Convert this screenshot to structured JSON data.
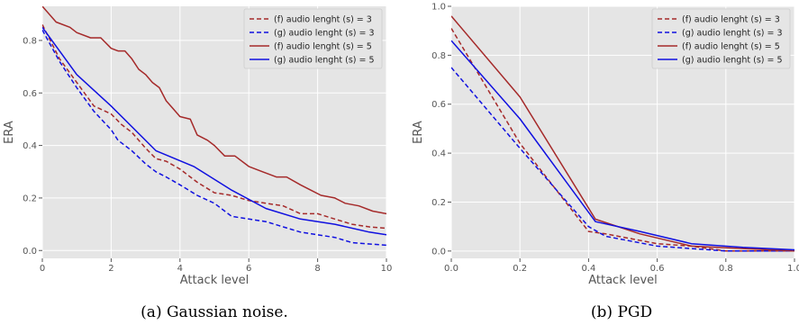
{
  "figure": {
    "captions": [
      "(a) Gaussian noise.",
      "(b) PGD"
    ]
  },
  "colors": {
    "dark_red": "#a52a2a",
    "blue": "#1010e0",
    "panel_bg": "#e5e5e5",
    "grid": "#ffffff"
  },
  "chart_data": [
    {
      "type": "line",
      "xlabel": "Attack level",
      "ylabel": "ERA",
      "xlim": [
        0,
        10
      ],
      "ylim": [
        -0.03,
        0.93
      ],
      "xticks": [
        0,
        2,
        4,
        6,
        8,
        10
      ],
      "yticks": [
        0.0,
        0.2,
        0.4,
        0.6,
        0.8
      ],
      "ytick_labels": [
        "0.0",
        "0.2",
        "0.4",
        "0.6",
        "0.8"
      ],
      "grid": true,
      "legend_position": "top-right",
      "series": [
        {
          "name": "(f)  audio lenght (s) = 3",
          "color": "#a52a2a",
          "dash": "dashed",
          "x": [
            0,
            0.5,
            1,
            1.5,
            2,
            2.3,
            2.6,
            3,
            3.3,
            3.6,
            4,
            4.5,
            5,
            5.5,
            6,
            6.5,
            7,
            7.5,
            8,
            8.5,
            9,
            9.5,
            10
          ],
          "y": [
            0.86,
            0.73,
            0.64,
            0.55,
            0.52,
            0.48,
            0.45,
            0.39,
            0.35,
            0.34,
            0.31,
            0.26,
            0.22,
            0.21,
            0.19,
            0.18,
            0.17,
            0.14,
            0.14,
            0.12,
            0.1,
            0.09,
            0.085
          ]
        },
        {
          "name": "(g)  audio lenght (s) = 3",
          "color": "#1010e0",
          "dash": "dashed",
          "x": [
            0,
            0.5,
            1,
            1.5,
            2,
            2.2,
            2.6,
            3,
            3.3,
            3.6,
            4,
            4.5,
            5,
            5.5,
            6,
            6.5,
            7,
            7.5,
            8,
            8.5,
            9,
            9.5,
            10
          ],
          "y": [
            0.84,
            0.72,
            0.62,
            0.53,
            0.46,
            0.42,
            0.38,
            0.33,
            0.3,
            0.28,
            0.25,
            0.21,
            0.18,
            0.13,
            0.12,
            0.11,
            0.09,
            0.07,
            0.06,
            0.05,
            0.03,
            0.025,
            0.02
          ]
        },
        {
          "name": "(f)  audio lenght (s) = 5",
          "color": "#a52a2a",
          "dash": "solid",
          "x": [
            0,
            0.4,
            0.8,
            1,
            1.4,
            1.7,
            2,
            2.2,
            2.4,
            2.6,
            2.8,
            3,
            3.2,
            3.4,
            3.6,
            3.8,
            4,
            4.3,
            4.5,
            4.8,
            5,
            5.3,
            5.6,
            6,
            6.4,
            6.8,
            7.1,
            7.5,
            7.8,
            8.1,
            8.5,
            8.8,
            9.2,
            9.6,
            10
          ],
          "y": [
            0.93,
            0.87,
            0.85,
            0.83,
            0.81,
            0.81,
            0.77,
            0.76,
            0.76,
            0.73,
            0.69,
            0.67,
            0.64,
            0.62,
            0.57,
            0.54,
            0.51,
            0.5,
            0.44,
            0.42,
            0.4,
            0.36,
            0.36,
            0.32,
            0.3,
            0.28,
            0.28,
            0.25,
            0.23,
            0.21,
            0.2,
            0.18,
            0.17,
            0.15,
            0.14
          ]
        },
        {
          "name": "(g)  audio lenght (s) = 5",
          "color": "#1010e0",
          "dash": "solid",
          "x": [
            0,
            1,
            2,
            3.3,
            4.4,
            5.5,
            6.5,
            7.5,
            8.5,
            9.5,
            10
          ],
          "y": [
            0.85,
            0.67,
            0.55,
            0.38,
            0.32,
            0.23,
            0.16,
            0.12,
            0.1,
            0.07,
            0.06
          ]
        }
      ]
    },
    {
      "type": "line",
      "xlabel": "Attack level",
      "ylabel": "ERA",
      "xlim": [
        0,
        1.0
      ],
      "ylim": [
        -0.03,
        1.0
      ],
      "xticks": [
        0.0,
        0.2,
        0.4,
        0.6,
        0.8,
        1.0
      ],
      "yticks": [
        0.0,
        0.2,
        0.4,
        0.6,
        0.8,
        1.0
      ],
      "ytick_labels": [
        "0.0",
        "0.2",
        "0.4",
        "0.6",
        "0.8",
        "1.0"
      ],
      "grid": true,
      "legend_position": "top-right",
      "series": [
        {
          "name": "(f)  audio lenght (s) = 3",
          "color": "#a52a2a",
          "dash": "dashed",
          "x": [
            0.0,
            0.2,
            0.4,
            0.45,
            0.6,
            0.7,
            0.8,
            1.0
          ],
          "y": [
            0.91,
            0.44,
            0.08,
            0.07,
            0.03,
            0.02,
            0.0,
            0.0
          ]
        },
        {
          "name": "(g)  audio lenght (s) = 3",
          "color": "#1010e0",
          "dash": "dashed",
          "x": [
            0.0,
            0.2,
            0.4,
            0.45,
            0.6,
            0.7,
            0.8,
            1.0
          ],
          "y": [
            0.75,
            0.42,
            0.1,
            0.06,
            0.02,
            0.01,
            0.0,
            0.0
          ]
        },
        {
          "name": "(f)  audio lenght (s) = 5",
          "color": "#a52a2a",
          "dash": "solid",
          "x": [
            0.0,
            0.2,
            0.42,
            0.55,
            0.7,
            0.85,
            1.0
          ],
          "y": [
            0.96,
            0.63,
            0.13,
            0.07,
            0.02,
            0.01,
            0.0
          ]
        },
        {
          "name": "(g)  audio lenght (s) = 5",
          "color": "#1010e0",
          "dash": "solid",
          "x": [
            0.0,
            0.2,
            0.42,
            0.55,
            0.7,
            0.85,
            1.0
          ],
          "y": [
            0.86,
            0.54,
            0.12,
            0.08,
            0.03,
            0.015,
            0.005
          ]
        }
      ]
    }
  ]
}
